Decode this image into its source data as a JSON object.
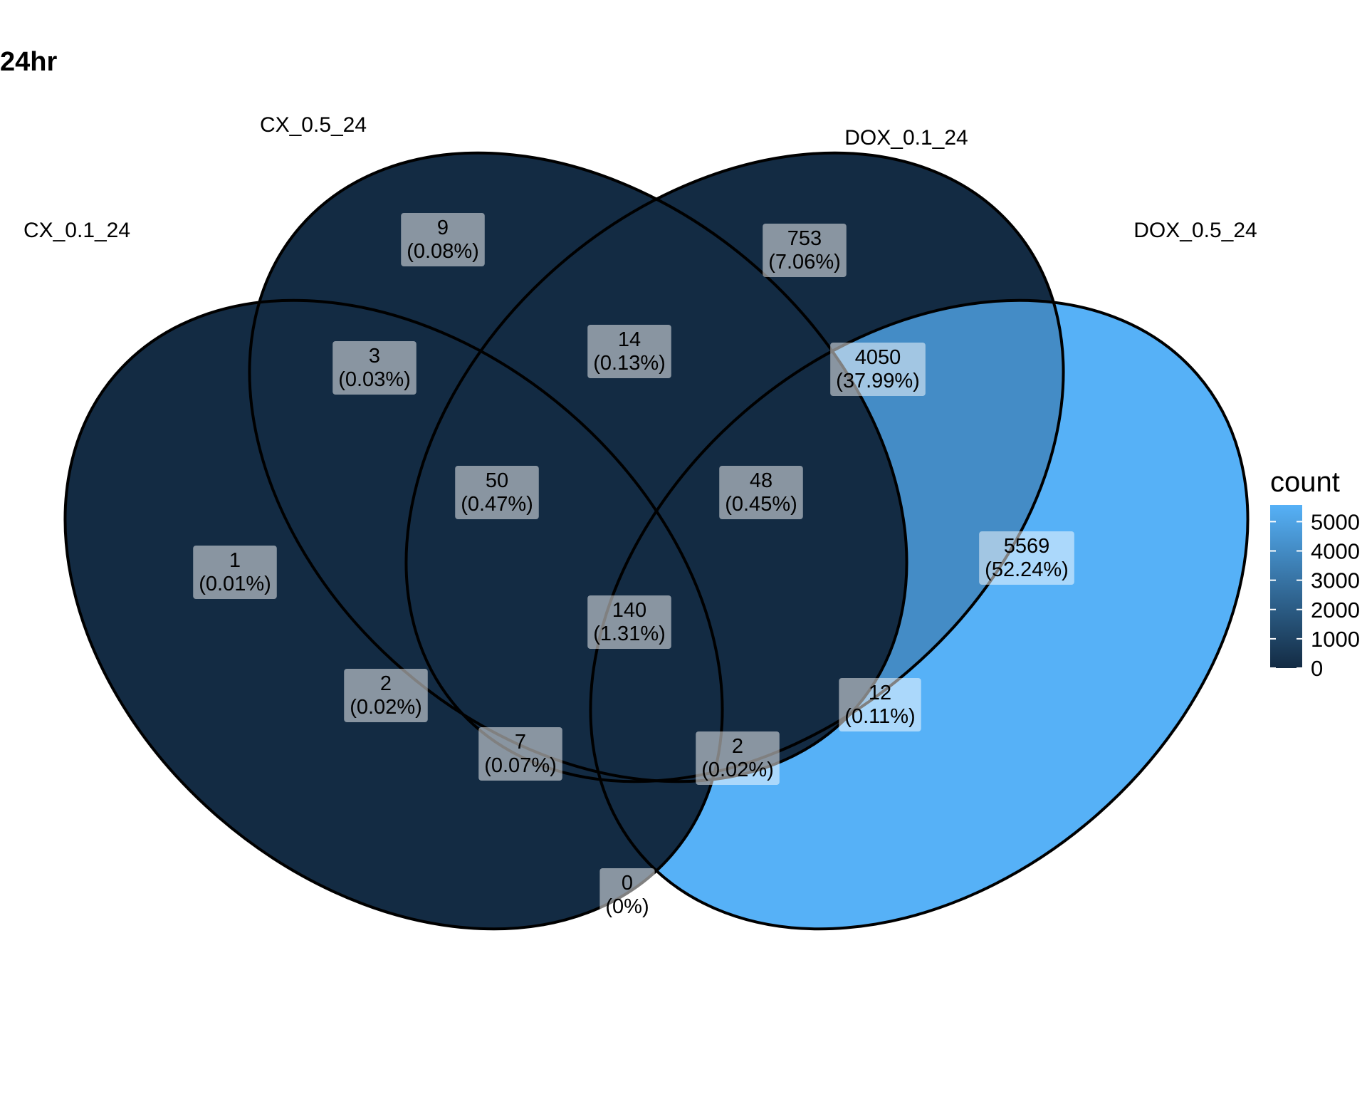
{
  "title": "24hr",
  "sets": [
    {
      "id": "cx01",
      "name": "CX_0.1_24"
    },
    {
      "id": "cx05",
      "name": "CX_0.5_24"
    },
    {
      "id": "dox01",
      "name": "DOX_0.1_24"
    },
    {
      "id": "dox05",
      "name": "DOX_0.5_24"
    }
  ],
  "regions": [
    {
      "sets": [
        "cx05"
      ],
      "count": "9",
      "percent": "(0.08%)",
      "value": 9
    },
    {
      "sets": [
        "dox01"
      ],
      "count": "753",
      "percent": "(7.06%)",
      "value": 753
    },
    {
      "sets": [
        "cx01",
        "cx05"
      ],
      "count": "3",
      "percent": "(0.03%)",
      "value": 3
    },
    {
      "sets": [
        "cx05",
        "dox01"
      ],
      "count": "14",
      "percent": "(0.13%)",
      "value": 14
    },
    {
      "sets": [
        "dox01",
        "dox05"
      ],
      "count": "4050",
      "percent": "(37.99%)",
      "value": 4050
    },
    {
      "sets": [
        "cx01",
        "cx05",
        "dox01"
      ],
      "count": "50",
      "percent": "(0.47%)",
      "value": 50
    },
    {
      "sets": [
        "cx05",
        "dox01",
        "dox05"
      ],
      "count": "48",
      "percent": "(0.45%)",
      "value": 48
    },
    {
      "sets": [
        "cx01"
      ],
      "count": "1",
      "percent": "(0.01%)",
      "value": 1
    },
    {
      "sets": [
        "dox05"
      ],
      "count": "5569",
      "percent": "(52.24%)",
      "value": 5569
    },
    {
      "sets": [
        "cx01",
        "cx05",
        "dox01",
        "dox05"
      ],
      "count": "140",
      "percent": "(1.31%)",
      "value": 140
    },
    {
      "sets": [
        "cx01",
        "dox01"
      ],
      "count": "2",
      "percent": "(0.02%)",
      "value": 2
    },
    {
      "sets": [
        "cx05",
        "dox05"
      ],
      "count": "12",
      "percent": "(0.11%)",
      "value": 12
    },
    {
      "sets": [
        "cx01",
        "dox01",
        "dox05"
      ],
      "count": "7",
      "percent": "(0.07%)",
      "value": 7
    },
    {
      "sets": [
        "cx01",
        "cx05",
        "dox05"
      ],
      "count": "2",
      "percent": "(0.02%)",
      "value": 2
    },
    {
      "sets": [
        "cx01",
        "dox05"
      ],
      "count": "0",
      "percent": "(0%)",
      "value": 0
    }
  ],
  "legend": {
    "title": "count",
    "ticks": [
      "5000",
      "4000",
      "3000",
      "2000",
      "1000",
      "0"
    ],
    "tick_values": [
      5000,
      4000,
      3000,
      2000,
      1000,
      0
    ],
    "min": 0,
    "max": 5569,
    "low_color": "#132B43",
    "high_color": "#56B1F7"
  }
}
